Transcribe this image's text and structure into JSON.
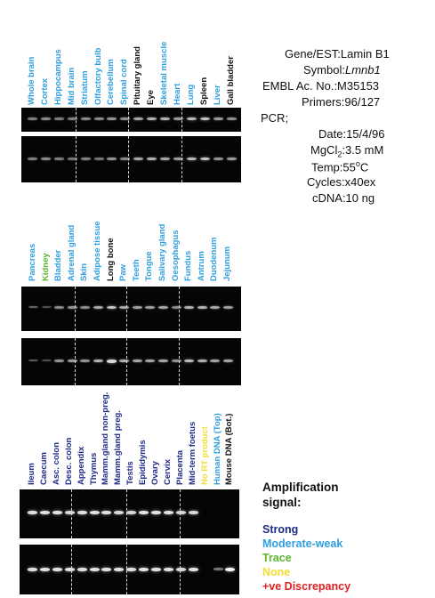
{
  "colors": {
    "strong": "#1f2a8a",
    "moderate_weak": "#2e9fe0",
    "trace": "#5ab52c",
    "none": "#f2de33",
    "discrepancy": "#e02020",
    "black": "#111111",
    "gel": "#050505"
  },
  "panel1": {
    "lanes": [
      {
        "label": "Whole brain",
        "level": "moderate_weak"
      },
      {
        "label": "Cortex",
        "level": "moderate_weak"
      },
      {
        "label": "Hippocampus",
        "level": "moderate_weak"
      },
      {
        "label": "Mid brain",
        "level": "moderate_weak"
      },
      {
        "label": "Striatum",
        "level": "moderate_weak"
      },
      {
        "label": "Olfactory bulb",
        "level": "moderate_weak"
      },
      {
        "label": "Cerebellum",
        "level": "moderate_weak"
      },
      {
        "label": "Spinal cord",
        "level": "moderate_weak"
      },
      {
        "label": "Pituitary gland",
        "level": "black"
      },
      {
        "label": "Eye",
        "level": "black"
      },
      {
        "label": "Skeletal muscle",
        "level": "moderate_weak"
      },
      {
        "label": "Heart",
        "level": "moderate_weak"
      },
      {
        "label": "Lung",
        "level": "moderate_weak"
      },
      {
        "label": "Spleen",
        "level": "black"
      },
      {
        "label": "Liver",
        "level": "moderate_weak"
      },
      {
        "label": "Gall bladder",
        "level": "black"
      }
    ]
  },
  "panel2": {
    "lanes": [
      {
        "label": "Pancreas",
        "level": "moderate_weak"
      },
      {
        "label": "Kidney",
        "level": "trace"
      },
      {
        "label": "Bladder",
        "level": "moderate_weak"
      },
      {
        "label": "Adrenal gland",
        "level": "moderate_weak"
      },
      {
        "label": "Skin",
        "level": "moderate_weak"
      },
      {
        "label": "Adipose tissue",
        "level": "moderate_weak"
      },
      {
        "label": "Long bone",
        "level": "black"
      },
      {
        "label": "Paw",
        "level": "moderate_weak"
      },
      {
        "label": "Teeth",
        "level": "moderate_weak"
      },
      {
        "label": "Tongue",
        "level": "moderate_weak"
      },
      {
        "label": "Salivary gland",
        "level": "moderate_weak"
      },
      {
        "label": "Oesophagus",
        "level": "moderate_weak"
      },
      {
        "label": "Fundus",
        "level": "moderate_weak"
      },
      {
        "label": "Antrum",
        "level": "moderate_weak"
      },
      {
        "label": "Duodenum",
        "level": "moderate_weak"
      },
      {
        "label": "Jejunum",
        "level": "moderate_weak"
      }
    ]
  },
  "panel3": {
    "lanes": [
      {
        "label": "Ileum",
        "level": "strong"
      },
      {
        "label": "Caecum",
        "level": "strong"
      },
      {
        "label": "Asc. colon",
        "level": "strong"
      },
      {
        "label": "Desc. colon",
        "level": "strong"
      },
      {
        "label": "Appendix",
        "level": "strong"
      },
      {
        "label": "Thymus",
        "level": "strong"
      },
      {
        "label": "Mamm.gland non-preg.",
        "level": "strong"
      },
      {
        "label": "Mamm.gland preg.",
        "level": "strong"
      },
      {
        "label": "Testis",
        "level": "strong"
      },
      {
        "label": "Epididymis",
        "level": "strong"
      },
      {
        "label": "Ovary",
        "level": "strong"
      },
      {
        "label": "Cervix",
        "level": "strong"
      },
      {
        "label": "Placenta",
        "level": "strong"
      },
      {
        "label": "Mid-term foetus",
        "level": "strong"
      },
      {
        "label": "No RT product",
        "level": "none"
      },
      {
        "label": "Human DNA (Top)",
        "level": "moderate_weak"
      },
      {
        "label": "Mouse DNA (Bot.)",
        "level": "black"
      }
    ]
  },
  "info": {
    "gene_est": "Gene/EST:Lamin B1",
    "symbol_label": "Symbol:",
    "symbol_value": "Lmnb1",
    "embl": "EMBL Ac. No.:M35153",
    "primers": "Primers:96/127",
    "pcr": "PCR;",
    "date": "Date:15/4/96",
    "mgcl_label": "MgCl",
    "mgcl_sub": "2",
    "mgcl_value": ":3.5 mM",
    "temp_label": "Temp:55",
    "temp_sup": "o",
    "temp_unit": "C",
    "cycles": "Cycles:x40ex",
    "cdna": "cDNA:10 ng"
  },
  "legend": {
    "title_line1": "Amplification",
    "title_line2": "signal:",
    "strong": "Strong",
    "moderate_weak": "Moderate-weak",
    "trace": "Trace",
    "none": "None",
    "discrepancy": "+ve Discrepancy"
  }
}
